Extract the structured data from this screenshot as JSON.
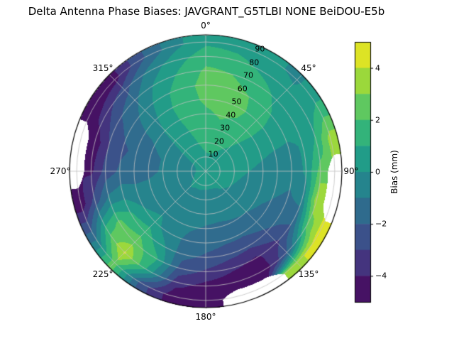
{
  "title": "Delta Antenna Phase Biases: JAVGRANT_G5TLBI NONE BeiDOU-E5b",
  "chart_data": {
    "type": "heatmap",
    "variant": "polar_filled_contour_skyplot",
    "title": "Delta Antenna Phase Biases: JAVGRANT_G5TLBI NONE BeiDOU-E5b",
    "azimuth": {
      "labels": [
        "0°",
        "45°",
        "90°",
        "135°",
        "180°",
        "225°",
        "270°",
        "315°"
      ],
      "values": [
        0,
        45,
        90,
        135,
        180,
        225,
        270,
        315
      ],
      "direction": "clockwise",
      "zero_location": "top"
    },
    "radial": {
      "labels": [
        "10",
        "20",
        "30",
        "40",
        "50",
        "60",
        "70",
        "80",
        "90"
      ],
      "values": [
        10,
        20,
        30,
        40,
        50,
        60,
        70,
        80,
        90
      ],
      "max": 95,
      "label_angle_deg": 24
    },
    "grid_on": true,
    "vmin": -5,
    "vmax": 5,
    "level_step": 1,
    "colorbar": {
      "label": "Bias (mm)",
      "ticks": [
        "4",
        "2",
        "0",
        "−2",
        "−4"
      ],
      "tick_values": [
        4,
        2,
        0,
        -2,
        -4
      ]
    },
    "colormap": {
      "name": "viridis",
      "stops": [
        "#440154",
        "#482475",
        "#414487",
        "#355f8d",
        "#2a788e",
        "#21918c",
        "#22a884",
        "#44bf70",
        "#7ad151",
        "#bddf26",
        "#fde725"
      ]
    },
    "grid": {
      "azimuth_deg": [
        0,
        15,
        30,
        45,
        60,
        75,
        90,
        105,
        120,
        135,
        150,
        165,
        180,
        195,
        210,
        225,
        240,
        255,
        270,
        285,
        300,
        315,
        330,
        345
      ],
      "radius_deg": [
        0,
        10,
        20,
        30,
        40,
        50,
        60,
        70,
        80,
        90
      ],
      "bias_mm": [
        [
          0.6,
          0.9,
          1.2,
          1.5,
          1.8,
          2.2,
          2.4,
          2.2,
          1.6,
          0.8
        ],
        [
          0.6,
          0.9,
          1.3,
          1.7,
          2.1,
          2.4,
          2.4,
          2.0,
          1.4,
          0.6
        ],
        [
          0.6,
          0.8,
          1.1,
          1.5,
          1.9,
          2.2,
          2.0,
          1.5,
          0.8,
          0.2
        ],
        [
          0.6,
          0.7,
          0.9,
          1.1,
          1.3,
          1.4,
          1.2,
          0.8,
          0.3,
          -0.2
        ],
        [
          0.6,
          0.6,
          0.6,
          0.7,
          0.7,
          0.6,
          0.4,
          0.2,
          0.4,
          1.2
        ],
        [
          0.6,
          0.5,
          0.4,
          0.3,
          0.1,
          -0.1,
          -0.2,
          0.1,
          1.2,
          3.5
        ],
        [
          0.6,
          0.4,
          0.2,
          0.0,
          -0.3,
          -0.5,
          -0.6,
          0.2,
          2.5,
          null
        ],
        [
          0.6,
          0.3,
          0.1,
          -0.2,
          -0.5,
          -0.8,
          -1.1,
          -0.5,
          3.8,
          null
        ],
        [
          0.6,
          0.3,
          0.0,
          -0.4,
          -0.8,
          -1.2,
          -1.6,
          -1.8,
          2.0,
          4.5
        ],
        [
          0.6,
          0.2,
          -0.1,
          -0.5,
          -1.0,
          -1.5,
          -2.2,
          -3.2,
          -2.0,
          3.8
        ],
        [
          0.5,
          0.1,
          -0.2,
          -0.6,
          -1.1,
          -1.8,
          -2.8,
          -4.2,
          -4.8,
          null
        ],
        [
          0.5,
          0.1,
          -0.3,
          -0.7,
          -1.2,
          -1.8,
          -2.6,
          -3.8,
          -4.8,
          null
        ],
        [
          0.5,
          0.1,
          -0.3,
          -0.7,
          -1.1,
          -1.6,
          -2.2,
          -3.2,
          -4.4,
          -4.8
        ],
        [
          0.5,
          0.1,
          -0.2,
          -0.5,
          -0.9,
          -1.2,
          -1.7,
          -2.4,
          -3.6,
          -4.6
        ],
        [
          0.5,
          0.1,
          -0.2,
          -0.4,
          -0.6,
          -0.6,
          0.2,
          1.2,
          0.6,
          -2.5
        ],
        [
          0.5,
          0.1,
          -0.1,
          -0.3,
          -0.2,
          0.4,
          1.6,
          2.6,
          4.2,
          2.5
        ],
        [
          0.5,
          0.0,
          -0.2,
          -0.4,
          -0.4,
          0.0,
          1.2,
          2.2,
          1.4,
          -1.5
        ],
        [
          0.5,
          -0.1,
          -0.3,
          -0.6,
          -0.8,
          -0.8,
          -0.4,
          -0.8,
          -2.6,
          -4.6
        ],
        [
          0.5,
          -0.2,
          -0.5,
          -0.9,
          -1.2,
          -1.4,
          -1.8,
          -2.6,
          -4.2,
          null
        ],
        [
          0.5,
          -0.2,
          -0.5,
          -0.9,
          -1.3,
          -1.7,
          -2.2,
          -3.0,
          -4.6,
          null
        ],
        [
          0.5,
          0.0,
          -0.3,
          -0.6,
          -0.9,
          -1.2,
          -1.6,
          -2.2,
          -3.4,
          -4.8
        ],
        [
          0.6,
          0.3,
          0.3,
          0.2,
          0.1,
          -0.2,
          -0.6,
          -1.2,
          -2.4,
          -4.4
        ],
        [
          0.6,
          0.6,
          0.7,
          0.8,
          0.9,
          0.9,
          0.7,
          0.2,
          -0.6,
          -2.2
        ],
        [
          0.6,
          0.8,
          1.0,
          1.2,
          1.4,
          1.6,
          1.6,
          1.2,
          0.6,
          -0.4
        ]
      ],
      "masked_value": null
    }
  }
}
